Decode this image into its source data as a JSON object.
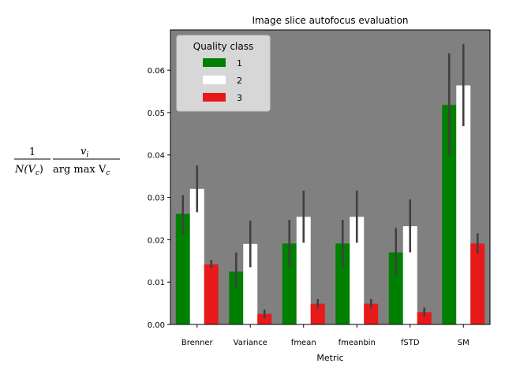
{
  "chart_data": {
    "type": "bar",
    "title": "Image slice autofocus evaluation",
    "xlabel": "Metric",
    "ylabel": {
      "numerator_left": "1",
      "denominator_left": "N(V",
      "denominator_left_sub": "c",
      "denominator_left_close": ")",
      "numerator_right": "v",
      "numerator_right_sub": "i",
      "denominator_right": "arg max V",
      "denominator_right_sub": "c"
    },
    "ylim": [
      0,
      0.0695
    ],
    "yticks": [
      "0.00",
      "0.01",
      "0.02",
      "0.03",
      "0.04",
      "0.05",
      "0.06"
    ],
    "ytick_values": [
      0,
      0.01,
      0.02,
      0.03,
      0.04,
      0.05,
      0.06
    ],
    "categories": [
      "Brenner",
      "Variance",
      "fmean",
      "fmeanbin",
      "fSTD",
      "SM"
    ],
    "legend": {
      "title": "Quality class",
      "placement": "upper-left"
    },
    "background": "#808080",
    "series": [
      {
        "name": "1",
        "color": "#008000",
        "values": [
          0.0261,
          0.0125,
          0.0191,
          0.0191,
          0.017,
          0.0518
        ],
        "err_low": [
          0.0213,
          0.0085,
          0.0135,
          0.0135,
          0.0115,
          0.04
        ],
        "err_high": [
          0.0305,
          0.017,
          0.0247,
          0.0247,
          0.0228,
          0.064
        ]
      },
      {
        "name": "2",
        "color": "#ffffff",
        "values": [
          0.032,
          0.019,
          0.0254,
          0.0254,
          0.0232,
          0.0564
        ],
        "err_low": [
          0.0265,
          0.0135,
          0.0193,
          0.0193,
          0.017,
          0.0468
        ],
        "err_high": [
          0.0375,
          0.0245,
          0.0316,
          0.0316,
          0.0295,
          0.0662
        ]
      },
      {
        "name": "3",
        "color": "#e8191a",
        "values": [
          0.0142,
          0.0025,
          0.0049,
          0.0049,
          0.0029,
          0.0191
        ],
        "err_low": [
          0.0133,
          0.0015,
          0.0038,
          0.0038,
          0.0018,
          0.0167
        ],
        "err_high": [
          0.0152,
          0.0035,
          0.006,
          0.006,
          0.004,
          0.0215
        ]
      }
    ]
  }
}
